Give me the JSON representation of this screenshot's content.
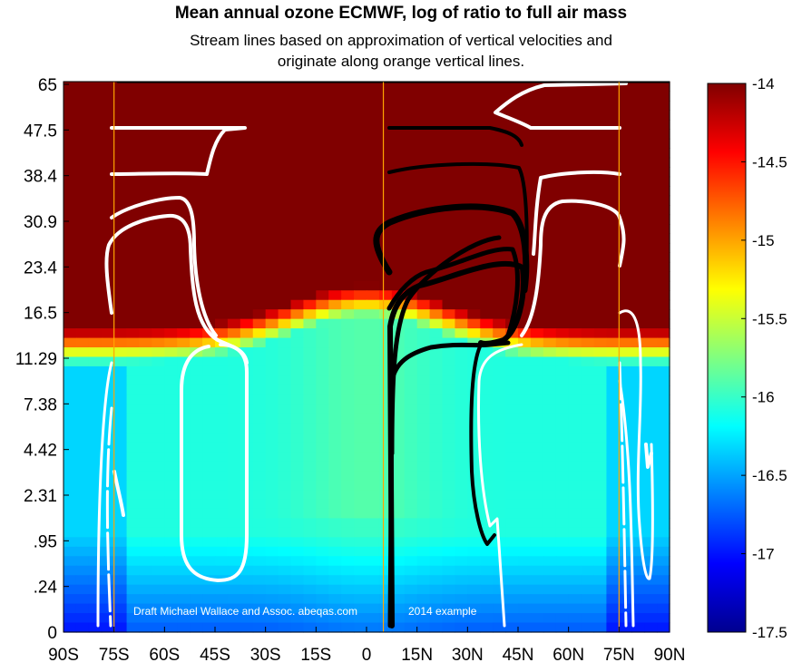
{
  "chart_data": {
    "type": "heatmap",
    "title": "Mean annual ozone ECMWF, log of ratio to full air mass",
    "subtitle": "Stream lines based on approximation of vertical velocities and originate along orange vertical lines.",
    "xlabel": "",
    "ylabel": "",
    "x_tick_labels": [
      "90S",
      "75S",
      "60S",
      "45S",
      "30S",
      "15S",
      "0",
      "15N",
      "30N",
      "45N",
      "60N",
      "75N",
      "90N"
    ],
    "y_tick_labels": [
      "0",
      ".24",
      ".95",
      "2.31",
      "4.42",
      "7.38",
      "11.29",
      "16.5",
      "23.4",
      "30.9",
      "38.4",
      "47.5",
      "65"
    ],
    "colorbar": {
      "range": [
        -17.5,
        -14
      ],
      "tick_labels": [
        "-14",
        "-14.5",
        "-15",
        "-15.5",
        "-16",
        "-16.5",
        "-17",
        "-17.5"
      ],
      "colormap": "jet"
    },
    "stream_origin_lines_lat": [
      -75,
      5,
      75
    ],
    "stream_line_colors": {
      "southern_and_polar": "#ffffff",
      "tropical_north": "#000000",
      "origin_lines": "#ffa500"
    },
    "annotations": [
      "Draft Michael Wallace and Assoc. abeqas.com",
      "2014 example"
    ],
    "grid": false,
    "legend": "colorbar right"
  }
}
